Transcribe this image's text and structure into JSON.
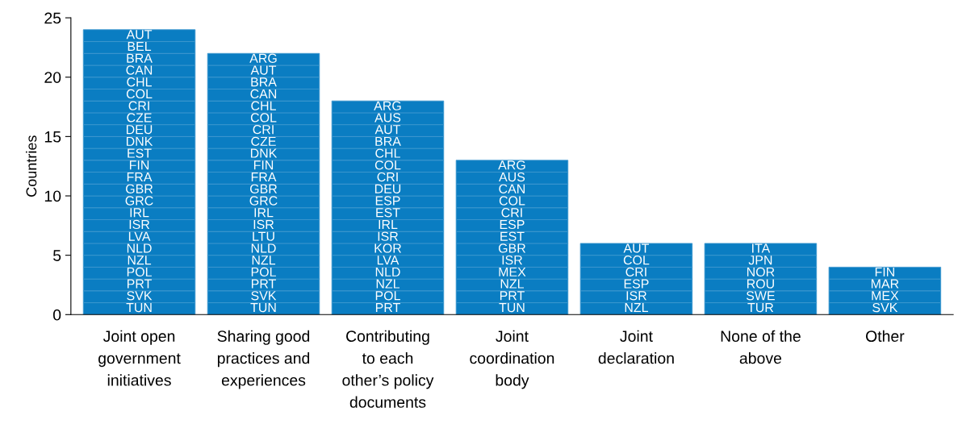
{
  "chart_data": {
    "type": "bar",
    "ylabel": "Countries",
    "stacked": true,
    "categories": [
      "Joint open\ngovernment\ninitiatives",
      "Sharing good\npractices and\nexperiences",
      "Contributing\nto each\nother’s policy\ndocuments",
      "Joint\ncoordination\nbody",
      "Joint\ndeclaration",
      "None of the\nabove",
      "Other"
    ],
    "series": [
      {
        "color": "#0a7dc2",
        "values": [
          1,
          1,
          1,
          1,
          1,
          1,
          1
        ],
        "value_labels": [
          "TUN",
          "TUN",
          "PRT",
          "TUN",
          "NZL",
          "TUR",
          "SVK"
        ]
      },
      {
        "color": "#0a7dc2",
        "values": [
          1,
          1,
          1,
          1,
          1,
          1,
          1
        ],
        "value_labels": [
          "SVK",
          "SVK",
          "POL",
          "PRT",
          "ISR",
          "SWE",
          "MEX"
        ]
      },
      {
        "color": "#0a7dc2",
        "values": [
          1,
          1,
          1,
          1,
          1,
          1,
          1
        ],
        "value_labels": [
          "PRT",
          "PRT",
          "NZL",
          "NZL",
          "ESP",
          "ROU",
          "MAR"
        ]
      },
      {
        "color": "#0a7dc2",
        "values": [
          1,
          1,
          1,
          1,
          1,
          1,
          1
        ],
        "value_labels": [
          "POL",
          "POL",
          "NLD",
          "MEX",
          "CRI",
          "NOR",
          "FIN"
        ]
      },
      {
        "color": "#0a7dc2",
        "values": [
          1,
          1,
          1,
          1,
          1,
          1,
          null
        ],
        "value_labels": [
          "NZL",
          "NZL",
          "LVA",
          "ISR",
          "COL",
          "JPN",
          null
        ]
      },
      {
        "color": "#0a7dc2",
        "values": [
          1,
          1,
          1,
          1,
          1,
          1,
          null
        ],
        "value_labels": [
          "NLD",
          "NLD",
          "KOR",
          "GBR",
          "AUT",
          "ITA",
          null
        ]
      },
      {
        "color": "#0a7dc2",
        "values": [
          1,
          1,
          1,
          1,
          null,
          null,
          null
        ],
        "value_labels": [
          "LVA",
          "LTU",
          "ISR",
          "EST",
          null,
          null,
          null
        ]
      },
      {
        "color": "#0a7dc2",
        "values": [
          1,
          1,
          1,
          1,
          null,
          null,
          null
        ],
        "value_labels": [
          "ISR",
          "ISR",
          "IRL",
          "ESP",
          null,
          null,
          null
        ]
      },
      {
        "color": "#0a7dc2",
        "values": [
          1,
          1,
          1,
          1,
          null,
          null,
          null
        ],
        "value_labels": [
          "IRL",
          "IRL",
          "EST",
          "CRI",
          null,
          null,
          null
        ]
      },
      {
        "color": "#0a7dc2",
        "values": [
          1,
          1,
          1,
          1,
          null,
          null,
          null
        ],
        "value_labels": [
          "GRC",
          "GRC",
          "ESP",
          "COL",
          null,
          null,
          null
        ]
      },
      {
        "color": "#0a7dc2",
        "values": [
          1,
          1,
          1,
          1,
          null,
          null,
          null
        ],
        "value_labels": [
          "GBR",
          "GBR",
          "DEU",
          "CAN",
          null,
          null,
          null
        ]
      },
      {
        "color": "#0a7dc2",
        "values": [
          1,
          1,
          1,
          1,
          null,
          null,
          null
        ],
        "value_labels": [
          "FRA",
          "FRA",
          "CRI",
          "AUS",
          null,
          null,
          null
        ]
      },
      {
        "color": "#0a7dc2",
        "values": [
          1,
          1,
          1,
          1,
          null,
          null,
          null
        ],
        "value_labels": [
          "FIN",
          "FIN",
          "COL",
          "ARG",
          null,
          null,
          null
        ]
      },
      {
        "color": "#0a7dc2",
        "values": [
          1,
          1,
          1,
          null,
          null,
          null,
          null
        ],
        "value_labels": [
          "EST",
          "DNK",
          "CHL",
          null,
          null,
          null,
          null
        ]
      },
      {
        "color": "#0a7dc2",
        "values": [
          1,
          1,
          1,
          null,
          null,
          null,
          null
        ],
        "value_labels": [
          "DNK",
          "CZE",
          "BRA",
          null,
          null,
          null,
          null
        ]
      },
      {
        "color": "#0a7dc2",
        "values": [
          1,
          1,
          1,
          null,
          null,
          null,
          null
        ],
        "value_labels": [
          "DEU",
          "CRI",
          "AUT",
          null,
          null,
          null,
          null
        ]
      },
      {
        "color": "#0a7dc2",
        "values": [
          1,
          1,
          1,
          null,
          null,
          null,
          null
        ],
        "value_labels": [
          "CZE",
          "COL",
          "AUS",
          null,
          null,
          null,
          null
        ]
      },
      {
        "color": "#0a7dc2",
        "values": [
          1,
          1,
          1,
          null,
          null,
          null,
          null
        ],
        "value_labels": [
          "CRI",
          "CHL",
          "ARG",
          null,
          null,
          null,
          null
        ]
      },
      {
        "color": "#0a7dc2",
        "values": [
          1,
          1,
          null,
          null,
          null,
          null,
          null
        ],
        "value_labels": [
          "COL",
          "CAN",
          null,
          null,
          null,
          null,
          null
        ]
      },
      {
        "color": "#0a7dc2",
        "values": [
          1,
          1,
          null,
          null,
          null,
          null,
          null
        ],
        "value_labels": [
          "CHL",
          "BRA",
          null,
          null,
          null,
          null,
          null
        ]
      },
      {
        "color": "#0a7dc2",
        "values": [
          1,
          1,
          null,
          null,
          null,
          null,
          null
        ],
        "value_labels": [
          "CAN",
          "AUT",
          null,
          null,
          null,
          null,
          null
        ]
      },
      {
        "color": "#0a7dc2",
        "values": [
          1,
          1,
          null,
          null,
          null,
          null,
          null
        ],
        "value_labels": [
          "BRA",
          "ARG",
          null,
          null,
          null,
          null,
          null
        ]
      },
      {
        "color": "#0a7dc2",
        "values": [
          1,
          null,
          null,
          null,
          null,
          null,
          null
        ],
        "value_labels": [
          "BEL",
          null,
          null,
          null,
          null,
          null,
          null
        ]
      },
      {
        "color": "#0a7dc2",
        "values": [
          1,
          null,
          null,
          null,
          null,
          null,
          null
        ],
        "value_labels": [
          "AUT",
          null,
          null,
          null,
          null,
          null,
          null
        ]
      }
    ],
    "ylim": [
      0,
      25
    ],
    "yticks": [
      0,
      5,
      10,
      15,
      20,
      25
    ]
  }
}
